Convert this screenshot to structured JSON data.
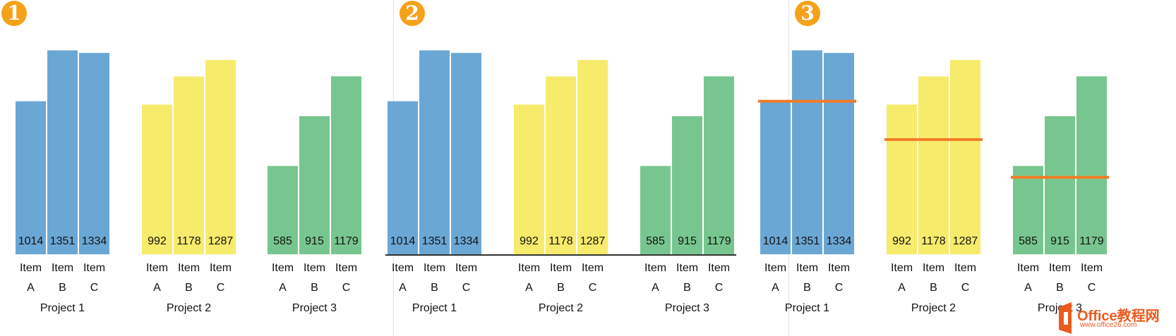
{
  "badges": [
    "1",
    "2",
    "3"
  ],
  "panels": [
    {
      "badge": "1",
      "baseline": false,
      "reference_lines": false
    },
    {
      "badge": "2",
      "baseline": true,
      "reference_lines": false
    },
    {
      "badge": "3",
      "baseline": false,
      "reference_lines": true
    }
  ],
  "colors": {
    "Project 1": "#6ba7d5",
    "Project 2": "#f6eb6b",
    "Project 3": "#78c68f",
    "reference_line": "#f07c27",
    "badge": "#f5a21b"
  },
  "chart_data": {
    "type": "bar",
    "ylim": [
      0,
      1400
    ],
    "projects": [
      {
        "name": "Project 1",
        "categories": [
          "Item A",
          "Item B",
          "Item C"
        ],
        "values": [
          1014,
          1351,
          1334
        ],
        "reference_value": 1014
      },
      {
        "name": "Project 2",
        "categories": [
          "Item A",
          "Item B",
          "Item C"
        ],
        "values": [
          992,
          1178,
          1287
        ],
        "reference_value": 760
      },
      {
        "name": "Project 3",
        "categories": [
          "Item A",
          "Item B",
          "Item C"
        ],
        "values": [
          585,
          915,
          1179
        ],
        "reference_value": 510
      }
    ]
  },
  "watermark": {
    "title": "Office教程网",
    "url": "www.office26.com"
  }
}
